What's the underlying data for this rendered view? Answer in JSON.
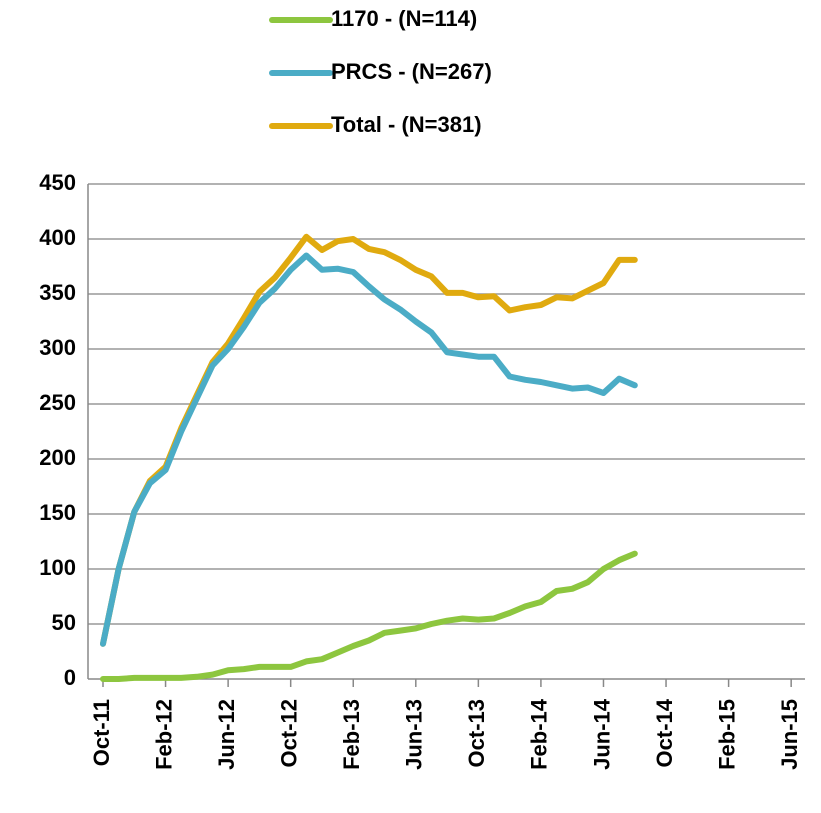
{
  "chart_data": {
    "type": "line",
    "categories": [
      "Oct-11",
      null,
      null,
      null,
      "Feb-12",
      null,
      null,
      null,
      "Jun-12",
      null,
      null,
      null,
      "Oct-12",
      null,
      null,
      null,
      "Feb-13",
      null,
      null,
      null,
      "Jun-13",
      null,
      null,
      null,
      "Oct-13",
      null,
      null,
      null,
      "Feb-14",
      null,
      null,
      null,
      "Jun-14",
      null,
      null,
      null,
      "Oct-14",
      null,
      null,
      null,
      "Feb-15",
      null,
      null,
      null,
      "Jun-15"
    ],
    "series": [
      {
        "name": "1170 - (N=114)",
        "color": "#8dc63f",
        "values": [
          0,
          0,
          1,
          1,
          1,
          1,
          2,
          4,
          8,
          9,
          11,
          11,
          11,
          16,
          18,
          24,
          30,
          35,
          42,
          44,
          46,
          50,
          53,
          55,
          54,
          55,
          60,
          66,
          70,
          80,
          82,
          88,
          100,
          108,
          114,
          null,
          null,
          null,
          null,
          null,
          null,
          null,
          null,
          null,
          null
        ]
      },
      {
        "name": "PRCS - (N=267)",
        "color": "#4bacc6",
        "values": [
          32,
          100,
          152,
          178,
          190,
          225,
          255,
          285,
          300,
          320,
          342,
          355,
          372,
          385,
          372,
          373,
          370,
          357,
          345,
          336,
          325,
          315,
          297,
          295,
          293,
          293,
          275,
          272,
          270,
          267,
          264,
          265,
          260,
          273,
          267,
          null,
          null,
          null,
          null,
          null,
          null,
          null,
          null,
          null,
          null
        ]
      },
      {
        "name": "Total - (N=381)",
        "color": "#e0aa0f",
        "values": [
          32,
          100,
          152,
          180,
          193,
          228,
          258,
          288,
          305,
          328,
          352,
          365,
          383,
          402,
          390,
          398,
          400,
          391,
          388,
          381,
          372,
          366,
          351,
          351,
          347,
          348,
          335,
          338,
          340,
          347,
          346,
          353,
          360,
          381,
          381,
          null,
          null,
          null,
          null,
          null,
          null,
          null,
          null,
          null,
          null
        ]
      }
    ],
    "ylim": [
      0,
      450
    ],
    "yticks": [
      0,
      50,
      100,
      150,
      200,
      250,
      300,
      350,
      400,
      450
    ],
    "grid": true,
    "legend": "top"
  }
}
